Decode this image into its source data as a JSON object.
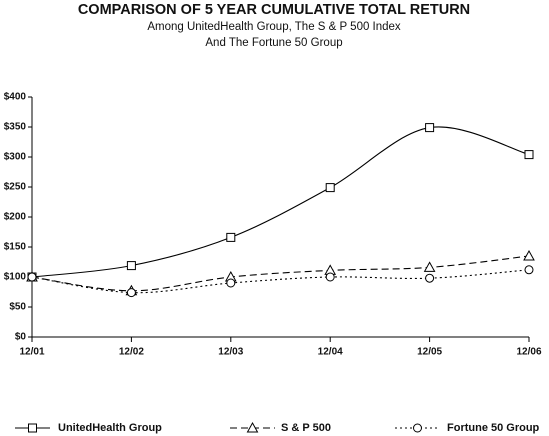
{
  "chart_data": {
    "type": "line",
    "title": "COMPARISON OF 5 YEAR CUMULATIVE TOTAL RETURN",
    "subtitle": [
      "Among UnitedHealth Group, The S & P 500 Index",
      "And The Fortune 50 Group"
    ],
    "categories": [
      "12/01",
      "12/02",
      "12/03",
      "12/04",
      "12/05",
      "12/06"
    ],
    "series": [
      {
        "name": "UnitedHealth Group",
        "color": "#000000",
        "marker": "square",
        "dash": "solid",
        "values": [
          100,
          119,
          166,
          249,
          349,
          304
        ]
      },
      {
        "name": "S & P 500",
        "color": "#000000",
        "marker": "triangle",
        "dash": "dashed",
        "values": [
          100,
          77,
          100,
          111,
          116,
          135
        ]
      },
      {
        "name": "Fortune 50 Group",
        "color": "#000000",
        "marker": "circle",
        "dash": "dotted",
        "values": [
          100,
          74,
          90,
          100,
          98,
          112
        ]
      }
    ],
    "ylim": [
      0,
      400
    ],
    "yticks": [
      {
        "value": 0,
        "label": "$0"
      },
      {
        "value": 50,
        "label": "$50"
      },
      {
        "value": 100,
        "label": "$100"
      },
      {
        "value": 150,
        "label": "$150"
      },
      {
        "value": 200,
        "label": "$200"
      },
      {
        "value": 250,
        "label": "$250"
      },
      {
        "value": 300,
        "label": "$300"
      },
      {
        "value": 350,
        "label": "$350"
      },
      {
        "value": 400,
        "label": "$400"
      }
    ],
    "grid": false,
    "smooth": true,
    "legend": "bottom"
  }
}
